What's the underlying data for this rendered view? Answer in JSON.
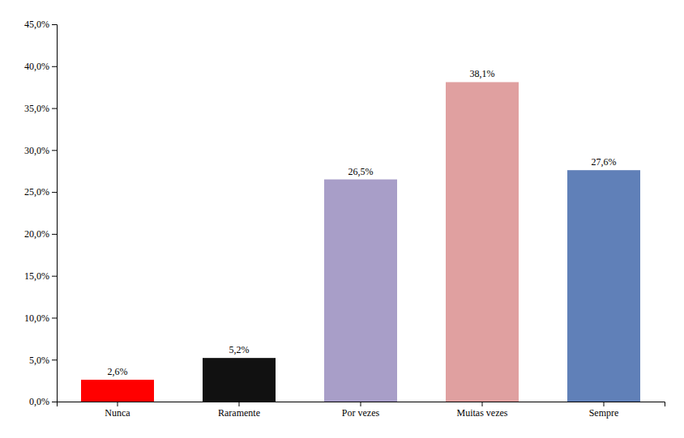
{
  "chart_data": {
    "type": "bar",
    "categories": [
      "Nunca",
      "Raramente",
      "Por vezes",
      "Muitas vezes",
      "Sempre"
    ],
    "values": [
      2.6,
      5.2,
      26.5,
      38.1,
      27.6
    ],
    "value_labels": [
      "2,6%",
      "5,2%",
      "26,5%",
      "38,1%",
      "27,6%"
    ],
    "colors": [
      "#ff0000",
      "#111111",
      "#a89ec8",
      "#e0a0a0",
      "#6080b8"
    ],
    "ylim": [
      0,
      45
    ],
    "yticks": [
      {
        "value": 0,
        "label": "0,0%"
      },
      {
        "value": 5,
        "label": "5,0%"
      },
      {
        "value": 10,
        "label": "10,0%"
      },
      {
        "value": 15,
        "label": "15,0%"
      },
      {
        "value": 20,
        "label": "20,0%"
      },
      {
        "value": 25,
        "label": "25,0%"
      },
      {
        "value": 30,
        "label": "30,0%"
      },
      {
        "value": 35,
        "label": "35,0%"
      },
      {
        "value": 40,
        "label": "40,0%"
      },
      {
        "value": 45,
        "label": "45,0%"
      }
    ],
    "grid": false,
    "data_labels": true
  }
}
